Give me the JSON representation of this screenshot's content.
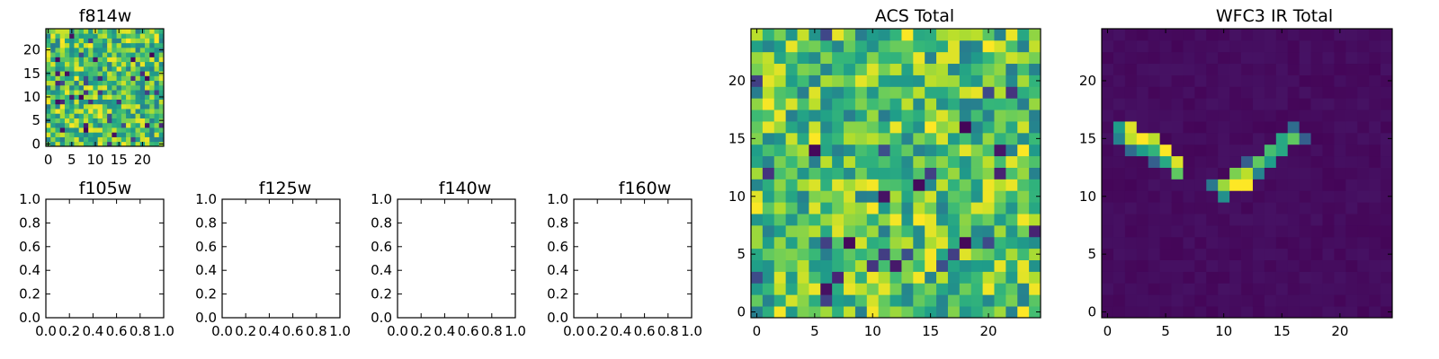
{
  "chart_data": [
    {
      "id": "f814w",
      "type": "heatmap",
      "title": "f814w",
      "grid_size": 25,
      "xticks": [
        "0",
        "5",
        "10",
        "15",
        "20"
      ],
      "yticks": [
        "0",
        "5",
        "10",
        "15",
        "20"
      ],
      "xlim": [
        -0.5,
        24.5
      ],
      "ylim": [
        -0.5,
        24.5
      ],
      "colormap": "viridis",
      "pattern": "random noise",
      "seed": 814
    },
    {
      "id": "f105w",
      "type": "empty",
      "title": "f105w",
      "xticks": [
        "0.0",
        "0.2",
        "0.4",
        "0.6",
        "0.8",
        "1.0"
      ],
      "yticks": [
        "0.0",
        "0.2",
        "0.4",
        "0.6",
        "0.8",
        "1.0"
      ],
      "xlim": [
        0,
        1
      ],
      "ylim": [
        0,
        1
      ]
    },
    {
      "id": "f125w",
      "type": "empty",
      "title": "f125w",
      "xticks": [
        "0.0",
        "0.2",
        "0.4",
        "0.6",
        "0.8",
        "1.0"
      ],
      "yticks": [
        "0.0",
        "0.2",
        "0.4",
        "0.6",
        "0.8",
        "1.0"
      ],
      "xlim": [
        0,
        1
      ],
      "ylim": [
        0,
        1
      ]
    },
    {
      "id": "f140w",
      "type": "empty",
      "title": "f140w",
      "xticks": [
        "0.0",
        "0.2",
        "0.4",
        "0.6",
        "0.8",
        "1.0"
      ],
      "yticks": [
        "0.0",
        "0.2",
        "0.4",
        "0.6",
        "0.8",
        "1.0"
      ],
      "xlim": [
        0,
        1
      ],
      "ylim": [
        0,
        1
      ]
    },
    {
      "id": "f160w",
      "type": "empty",
      "title": "f160w",
      "xticks": [
        "0.0",
        "0.2",
        "0.4",
        "0.6",
        "0.8",
        "1.0"
      ],
      "yticks": [
        "0.0",
        "0.2",
        "0.4",
        "0.6",
        "0.8",
        "1.0"
      ],
      "xlim": [
        0,
        1
      ],
      "ylim": [
        0,
        1
      ]
    },
    {
      "id": "acs-total",
      "type": "heatmap",
      "title": "ACS Total",
      "grid_size": 25,
      "xticks": [
        "0",
        "5",
        "10",
        "15",
        "20"
      ],
      "yticks": [
        "0",
        "5",
        "10",
        "15",
        "20"
      ],
      "xlim": [
        -0.5,
        24.5
      ],
      "ylim": [
        -0.5,
        24.5
      ],
      "colormap": "viridis",
      "pattern": "random noise",
      "seed": 2025
    },
    {
      "id": "wfc3-ir-total",
      "type": "heatmap",
      "title": "WFC3 IR Total",
      "grid_size": 25,
      "xticks": [
        "0",
        "5",
        "10",
        "15",
        "20"
      ],
      "yticks": [
        "0",
        "5",
        "10",
        "15",
        "20"
      ],
      "xlim": [
        -0.5,
        24.5
      ],
      "ylim": [
        -0.5,
        24.5
      ],
      "colormap": "viridis",
      "background_level": 0.03,
      "bright_pixels": [
        {
          "x": 1,
          "y": 16,
          "v": 0.55
        },
        {
          "x": 1,
          "y": 15,
          "v": 0.45
        },
        {
          "x": 2,
          "y": 16,
          "v": 0.95
        },
        {
          "x": 2,
          "y": 15,
          "v": 0.9
        },
        {
          "x": 2,
          "y": 14,
          "v": 0.35
        },
        {
          "x": 3,
          "y": 15,
          "v": 1.0
        },
        {
          "x": 3,
          "y": 14,
          "v": 0.55
        },
        {
          "x": 4,
          "y": 15,
          "v": 0.9
        },
        {
          "x": 4,
          "y": 14,
          "v": 0.65
        },
        {
          "x": 4,
          "y": 13,
          "v": 0.3
        },
        {
          "x": 5,
          "y": 14,
          "v": 1.0
        },
        {
          "x": 5,
          "y": 13,
          "v": 0.6
        },
        {
          "x": 6,
          "y": 13,
          "v": 0.95
        },
        {
          "x": 6,
          "y": 12,
          "v": 0.75
        },
        {
          "x": 9,
          "y": 11,
          "v": 0.4
        },
        {
          "x": 10,
          "y": 11,
          "v": 0.85
        },
        {
          "x": 10,
          "y": 10,
          "v": 0.5
        },
        {
          "x": 11,
          "y": 12,
          "v": 0.8
        },
        {
          "x": 11,
          "y": 11,
          "v": 1.0
        },
        {
          "x": 12,
          "y": 12,
          "v": 0.9
        },
        {
          "x": 12,
          "y": 11,
          "v": 1.0
        },
        {
          "x": 12,
          "y": 13,
          "v": 0.3
        },
        {
          "x": 13,
          "y": 13,
          "v": 0.75
        },
        {
          "x": 13,
          "y": 12,
          "v": 0.45
        },
        {
          "x": 14,
          "y": 14,
          "v": 0.7
        },
        {
          "x": 14,
          "y": 13,
          "v": 0.55
        },
        {
          "x": 15,
          "y": 15,
          "v": 0.6
        },
        {
          "x": 15,
          "y": 14,
          "v": 0.6
        },
        {
          "x": 16,
          "y": 15,
          "v": 0.75
        },
        {
          "x": 16,
          "y": 16,
          "v": 0.35
        },
        {
          "x": 17,
          "y": 15,
          "v": 0.3
        }
      ]
    }
  ]
}
